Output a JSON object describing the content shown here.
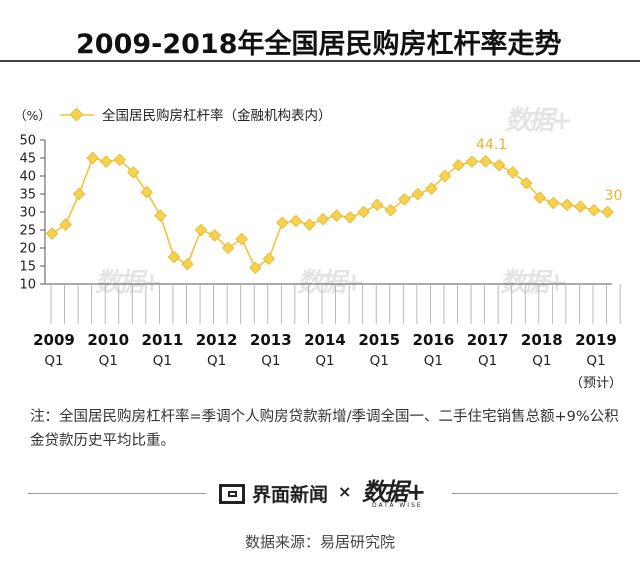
{
  "title": "2009-2018年全国居民购房杠杆率走势",
  "note": "注：全国居民购房杠杆率=季调个人购房贷款新增/季调全国一、二手住宅销售总额+9%公积金贷款历史平均比重。",
  "brand": {
    "name": "界面新闻",
    "times": "×",
    "partner": "数据+",
    "partner_sub": "DATA WISE"
  },
  "source": "数据来源：易居研究院",
  "watermark": "数据+",
  "colors": {
    "series": "#F5C23C",
    "marker": "#F7D24F",
    "label": "#F0AD2E",
    "axis": "#555555",
    "rule": "#444444"
  },
  "chart_data": {
    "type": "line",
    "unit_label": "（%）",
    "ylim": [
      10,
      50
    ],
    "yticks": [
      "10",
      "15",
      "20",
      "25",
      "30",
      "35",
      "40",
      "45",
      "50"
    ],
    "year_labels": [
      "2009",
      "2010",
      "2011",
      "2012",
      "2013",
      "2014",
      "2015",
      "2016",
      "2017",
      "2018",
      "2019"
    ],
    "quarter_label": "Q1",
    "forecast_note": "（预计）",
    "grid": false,
    "legend_position": "top-left",
    "series": [
      {
        "name": "全国居民购房杠杆率（金融机构表内）",
        "values": [
          24,
          26.5,
          35,
          45,
          44,
          44.5,
          41,
          35.5,
          29,
          17.5,
          15.5,
          25,
          23.5,
          20,
          22.5,
          14.5,
          17,
          27,
          27.5,
          26.5,
          28,
          29,
          28.5,
          30,
          32,
          30.5,
          33.5,
          35,
          36.5,
          40,
          43,
          44,
          44.1,
          43,
          41,
          38,
          34,
          32.5,
          32,
          31.5,
          30.5,
          30
        ]
      }
    ],
    "annotations": [
      {
        "text": "44.1",
        "index": 32
      },
      {
        "text": "30",
        "index": 41
      }
    ]
  }
}
